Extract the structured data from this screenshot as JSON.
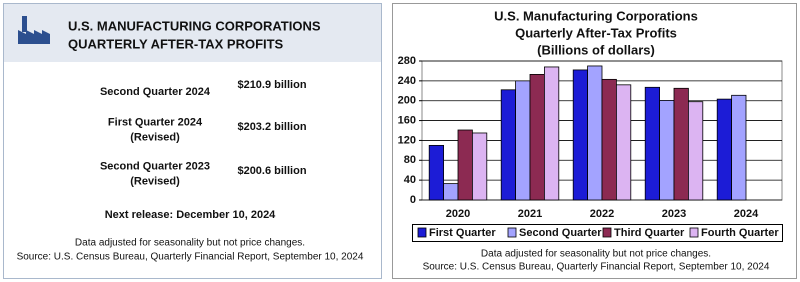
{
  "summary": {
    "title": [
      "U.S. MANUFACTURING CORPORATIONS",
      "QUARTERLY AFTER-TAX PROFITS"
    ],
    "items": [
      {
        "label": [
          "Second Quarter 2024"
        ],
        "value": "$210.9 billion"
      },
      {
        "label": [
          "First Quarter 2024",
          "(Revised)"
        ],
        "value": "$203.2 billion"
      },
      {
        "label": [
          "Second Quarter 2023",
          "(Revised)"
        ],
        "value": "$200.6 billion"
      }
    ],
    "next_release": "Next release: December 10, 2024",
    "notes": [
      "Data adjusted for seasonality but not price changes.",
      "Source: U.S. Census Bureau, Quarterly Financial Report, September 10, 2024"
    ]
  },
  "chart_data": {
    "type": "bar",
    "title": [
      "U.S. Manufacturing Corporations",
      "Quarterly After-Tax Profits",
      "(Billions of dollars)"
    ],
    "categories": [
      "2020",
      "2021",
      "2022",
      "2023",
      "2024"
    ],
    "series": [
      {
        "name": "First Quarter",
        "color": "#1c1cd6",
        "values": [
          110,
          222,
          262,
          227,
          203.2
        ]
      },
      {
        "name": "Second Quarter",
        "color": "#a3a3ff",
        "values": [
          33,
          240,
          270,
          200.6,
          210.9
        ]
      },
      {
        "name": "Third Quarter",
        "color": "#8c2a52",
        "values": [
          141,
          253,
          243,
          225,
          null
        ]
      },
      {
        "name": "Fourth Quarter",
        "color": "#dcb4f2",
        "values": [
          135,
          268,
          232,
          198,
          null
        ]
      }
    ],
    "ylim": [
      0,
      280
    ],
    "yticks": [
      0,
      40,
      80,
      120,
      160,
      200,
      240,
      280
    ],
    "grid": true,
    "legend": "bottom",
    "notes": [
      "Data adjusted for seasonality but not price changes.",
      "Source: U.S. Census Bureau, Quarterly Financial Report, September 10, 2024"
    ]
  }
}
